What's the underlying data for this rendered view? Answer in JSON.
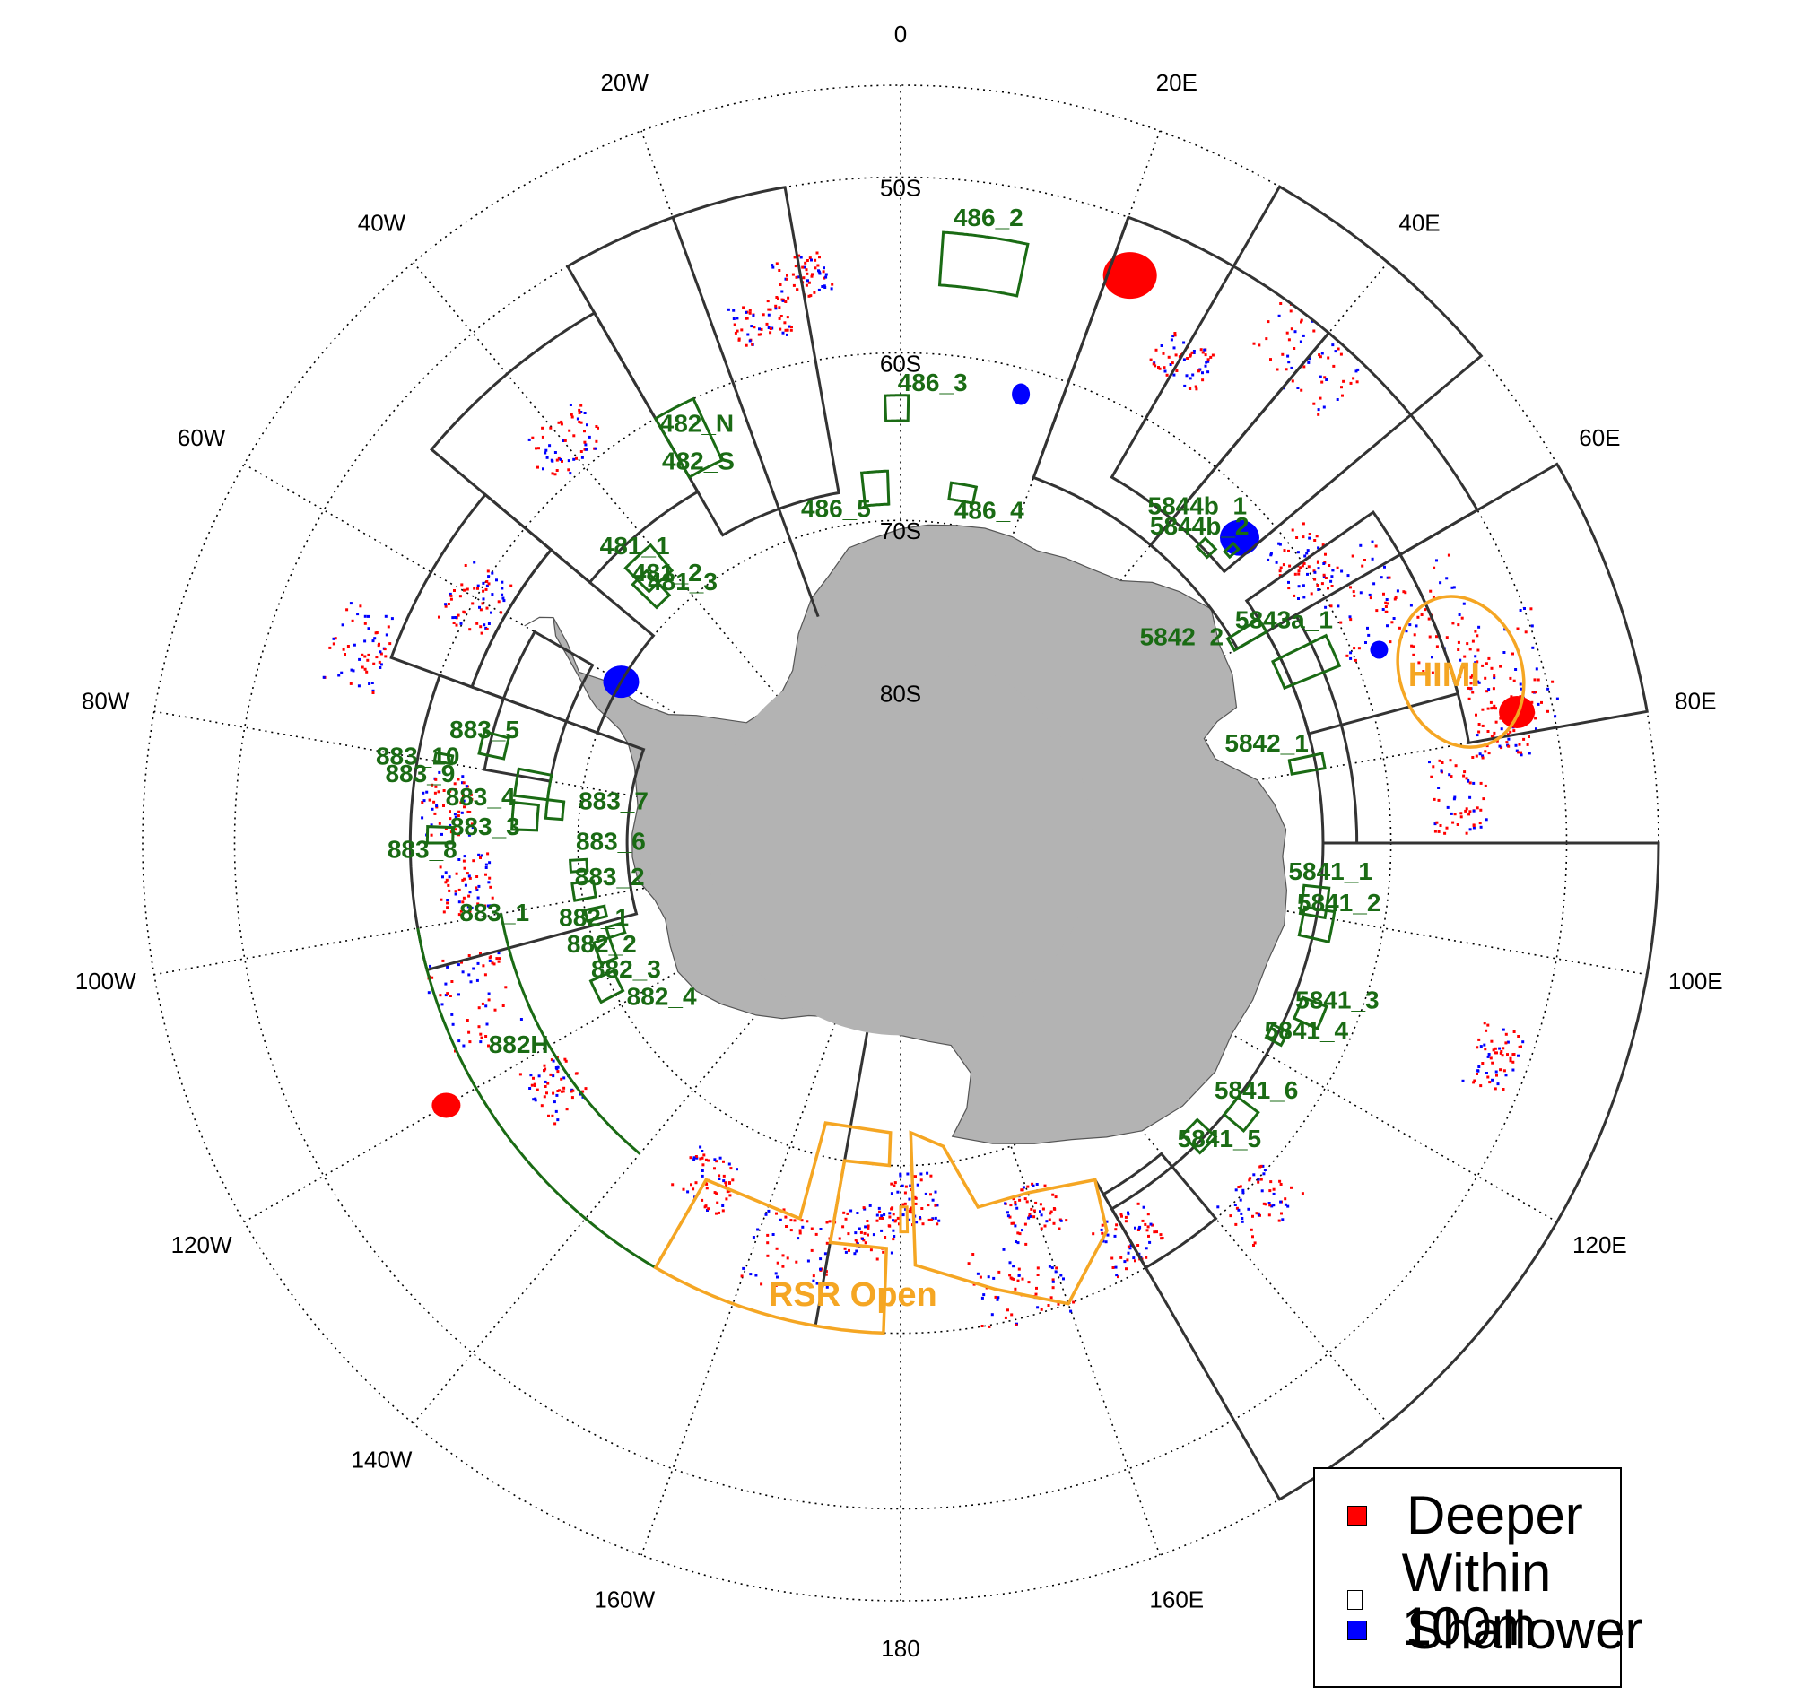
{
  "lon_labels": [
    {
      "text": "0",
      "lon": 0
    },
    {
      "text": "20E",
      "lon": 20
    },
    {
      "text": "40E",
      "lon": 40
    },
    {
      "text": "60E",
      "lon": 60
    },
    {
      "text": "80E",
      "lon": 80
    },
    {
      "text": "100E",
      "lon": 100
    },
    {
      "text": "120E",
      "lon": 120
    },
    {
      "text": "160E",
      "lon": 160
    },
    {
      "text": "180",
      "lon": 180
    },
    {
      "text": "160W",
      "lon": -160
    },
    {
      "text": "140W",
      "lon": -140
    },
    {
      "text": "120W",
      "lon": -120
    },
    {
      "text": "100W",
      "lon": -100
    },
    {
      "text": "80W",
      "lon": -80
    },
    {
      "text": "60W",
      "lon": -60
    },
    {
      "text": "40W",
      "lon": -40
    },
    {
      "text": "20W",
      "lon": -20
    }
  ],
  "lat_labels": [
    {
      "text": "50S",
      "lat": -50
    },
    {
      "text": "60S",
      "lat": -60
    },
    {
      "text": "70S",
      "lat": -70
    },
    {
      "text": "80S",
      "lat": -80
    }
  ],
  "area_labels": [
    {
      "text": "486_2",
      "lon": 8,
      "lat": -52
    },
    {
      "text": "486_3",
      "lon": 4,
      "lat": -61.8
    },
    {
      "text": "486_5",
      "lon": -11,
      "lat": -69
    },
    {
      "text": "486_4",
      "lon": 15,
      "lat": -68.8
    },
    {
      "text": "482_N",
      "lon": -26,
      "lat": -61.5
    },
    {
      "text": "482_S",
      "lon": -28,
      "lat": -63.5
    },
    {
      "text": "481_1",
      "lon": -42,
      "lat": -65.5
    },
    {
      "text": "481_2",
      "lon": -41,
      "lat": -68
    },
    {
      "text": "481_3",
      "lon": -40,
      "lat": -69
    },
    {
      "text": "883_5",
      "lon": -75,
      "lat": -63.5
    },
    {
      "text": "883_10",
      "lon": -80,
      "lat": -60
    },
    {
      "text": "883_9",
      "lon": -82,
      "lat": -60.3
    },
    {
      "text": "883_4",
      "lon": -84,
      "lat": -64
    },
    {
      "text": "883_7",
      "lon": -82,
      "lat": -72
    },
    {
      "text": "883_3",
      "lon": -88,
      "lat": -64.4
    },
    {
      "text": "883_6",
      "lon": -90,
      "lat": -72
    },
    {
      "text": "883_8",
      "lon": -91,
      "lat": -60.7
    },
    {
      "text": "883_2",
      "lon": -97,
      "lat": -71.8
    },
    {
      "text": "883_1",
      "lon": -100,
      "lat": -64.6
    },
    {
      "text": "882_1",
      "lon": -104,
      "lat": -70.4
    },
    {
      "text": "882_2",
      "lon": -109,
      "lat": -70.4
    },
    {
      "text": "882_3",
      "lon": -115,
      "lat": -71.2
    },
    {
      "text": "882_4",
      "lon": -123,
      "lat": -72.3
    },
    {
      "text": "882H",
      "lon": -118,
      "lat": -63.4
    },
    {
      "text": "5844b_1",
      "lon": 41.5,
      "lat": -62.5
    },
    {
      "text": "5844b_2",
      "lon": 43.5,
      "lat": -63.3
    },
    {
      "text": "5842_2",
      "lon": 54,
      "lat": -68.5
    },
    {
      "text": "5843a_1",
      "lon": 60,
      "lat": -62.8
    },
    {
      "text": "5842_1",
      "lon": 75,
      "lat": -66.6
    },
    {
      "text": "5841_1",
      "lon": 94,
      "lat": -63.5
    },
    {
      "text": "5841_2",
      "lon": 98,
      "lat": -62.8
    },
    {
      "text": "5841_3",
      "lon": 110,
      "lat": -61.5
    },
    {
      "text": "5841_4",
      "lon": 115,
      "lat": -62.5
    },
    {
      "text": "5841_6",
      "lon": 125,
      "lat": -63.3
    },
    {
      "text": "5841_5",
      "lon": 133,
      "lat": -63.2
    }
  ],
  "orange_labels": [
    {
      "text": "HIMI",
      "lon": 73,
      "lat": -55.5
    },
    {
      "text": "RSR Open",
      "lon": -174,
      "lat": -62
    }
  ],
  "legend": [
    {
      "label": "Deeper",
      "color": "#ff0000"
    },
    {
      "label": "Within 100m",
      "color": "#ffffff"
    },
    {
      "label": "Shallower",
      "color": "#0000ff"
    }
  ],
  "colors": {
    "land": "#b3b3b3",
    "area_outline": "#1a6b14",
    "open_area_outline": "#f5a623",
    "deeper": "#ff0000",
    "shallower": "#0000ff"
  },
  "map": {
    "projection": "south polar stereographic",
    "lat_range": [
      -90,
      -45
    ],
    "graticule_lons": [
      0,
      20,
      40,
      60,
      80,
      100,
      120,
      140,
      160,
      180,
      -160,
      -140,
      -120,
      -100,
      -80,
      -60,
      -40,
      -20
    ],
    "graticule_lats": [
      -50,
      -60,
      -70,
      -80
    ]
  }
}
